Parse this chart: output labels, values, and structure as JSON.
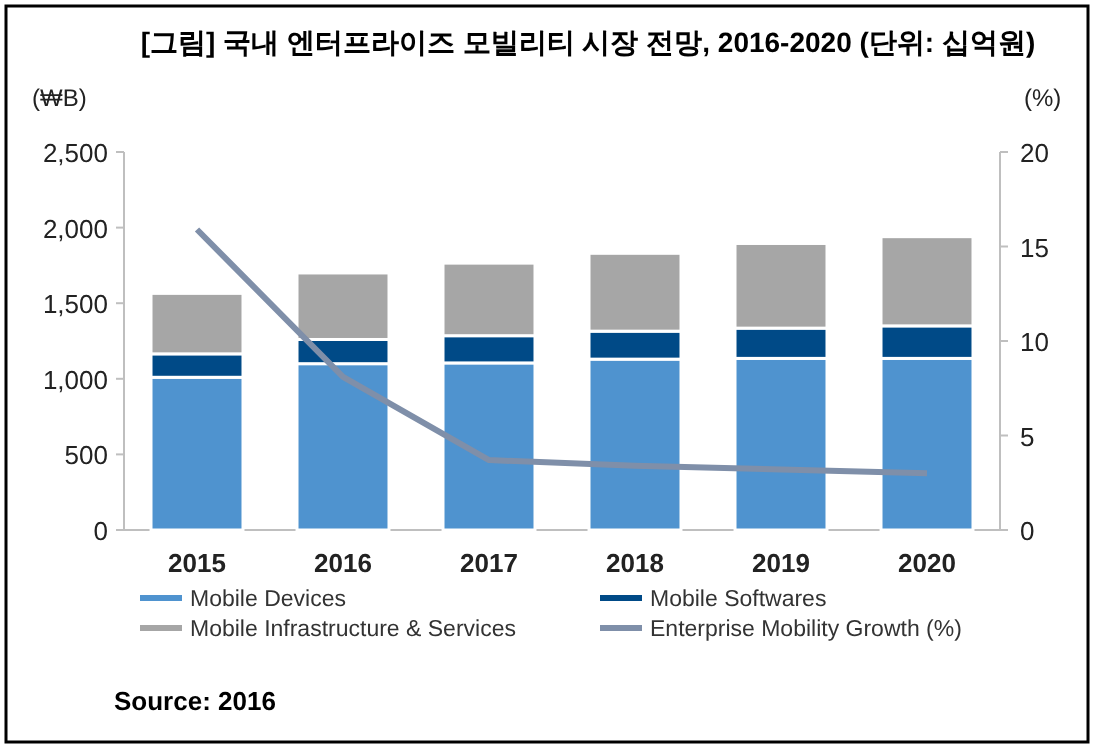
{
  "chart_data": {
    "type": "bar",
    "stacked": true,
    "title": "[그림] 국내 엔터프라이즈 모빌리티 시장 전망, 2016-2020 (단위: 십억원)",
    "ylabel": "(₩B)",
    "y2label": "(%)",
    "categories": [
      "2015",
      "2016",
      "2017",
      "2018",
      "2019",
      "2020"
    ],
    "series": [
      {
        "name": "Mobile Devices",
        "color": "#4f93cf",
        "values": [
          1010,
          1100,
          1105,
          1130,
          1135,
          1135
        ]
      },
      {
        "name": "Mobile Softwares",
        "color": "#004a87",
        "values": [
          155,
          160,
          180,
          185,
          200,
          215
        ]
      },
      {
        "name": "Mobile Infrastructure & Services",
        "color": "#a6a6a6",
        "values": [
          400,
          440,
          480,
          515,
          560,
          590
        ]
      },
      {
        "name": "Enterprise Mobility Growth (%)",
        "type": "line",
        "axis": "y2",
        "color": "#7f8fa9",
        "values": [
          15.9,
          8.1,
          3.7,
          3.4,
          3.2,
          3.0
        ]
      }
    ],
    "ylim": [
      0,
      2500
    ],
    "yticks": [
      0,
      500,
      {
        "value": 1000,
        "label": "1,000"
      },
      {
        "value": 1500,
        "label": "1,500"
      },
      {
        "value": 2000,
        "label": "2,000"
      },
      {
        "value": 2500,
        "label": "2,500"
      }
    ],
    "y2lim": [
      0,
      20
    ],
    "y2ticks": [
      0,
      5,
      10,
      15,
      20
    ],
    "legend": "bottom",
    "marker": "none",
    "annotations": [
      "Source: 2016"
    ]
  }
}
